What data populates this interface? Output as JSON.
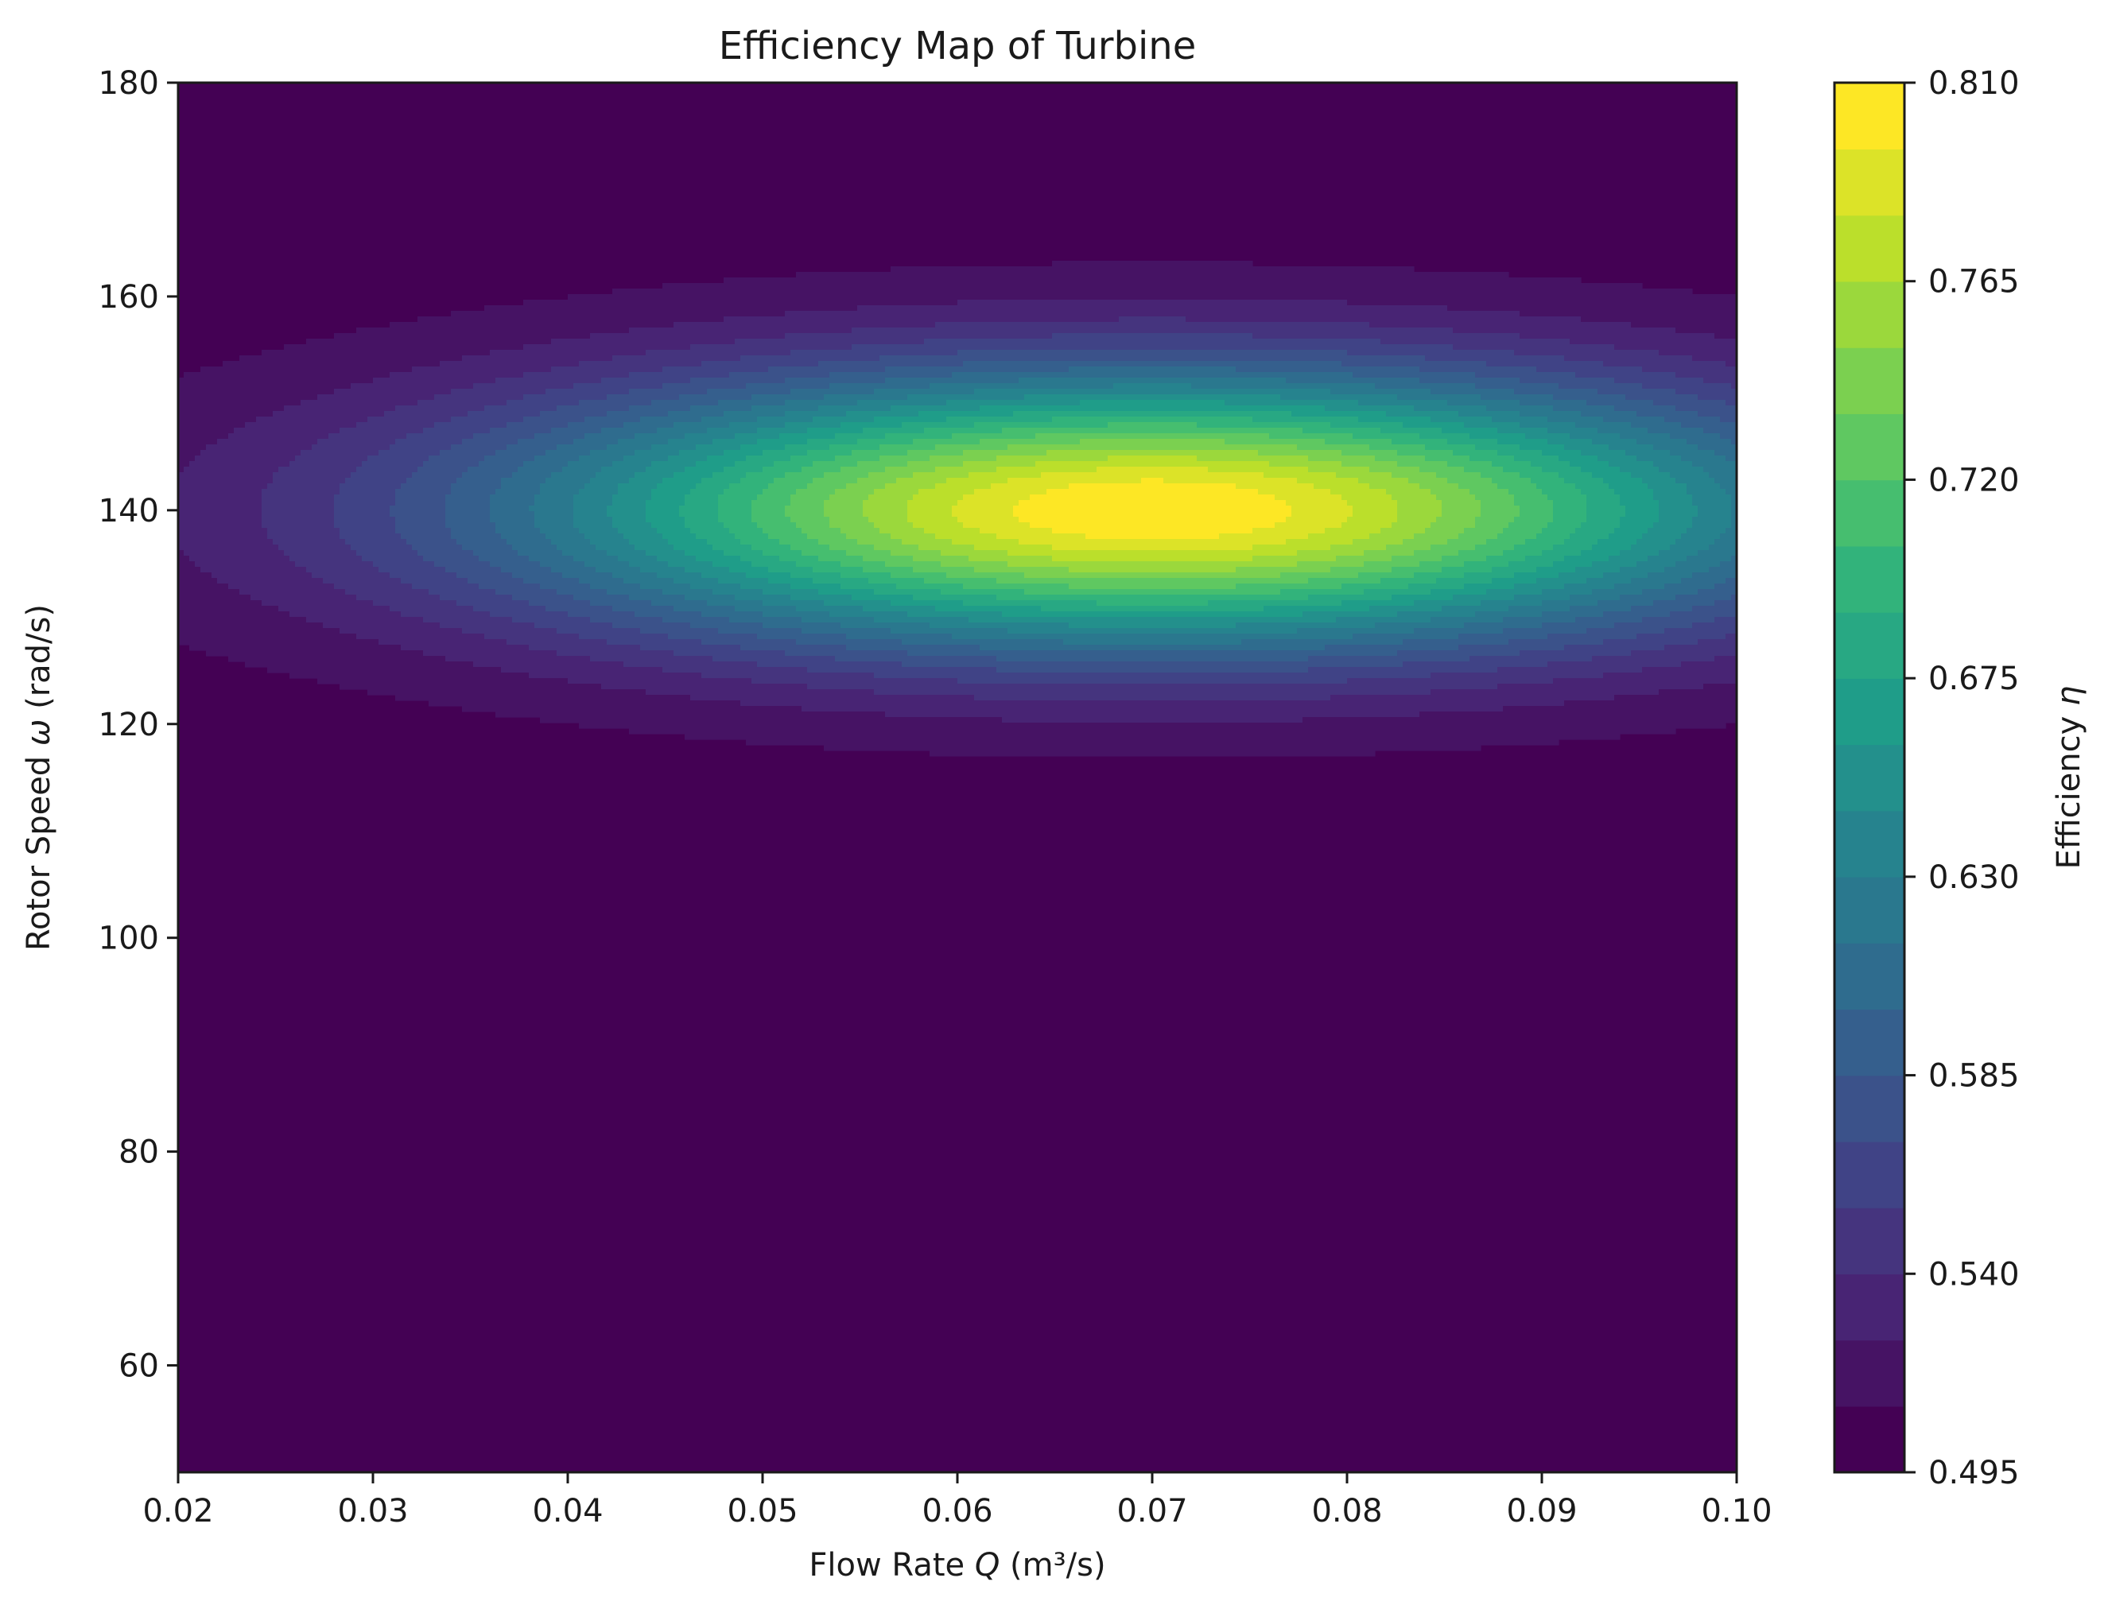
{
  "chart_data": {
    "type": "heatmap",
    "subtype": "filled-contour",
    "title": "Efficiency Map of Turbine",
    "xlabel": "Flow Rate Q (m³/s)",
    "xlabel_parts": {
      "before": "Flow Rate ",
      "symbol": "Q",
      "after": " (m³/s)"
    },
    "ylabel": "Rotor Speed ω (rad/s)",
    "ylabel_parts": {
      "before": "Rotor Speed ",
      "symbol": "ω",
      "after": " (rad/s)"
    },
    "colorbar_label": "Efficiency η",
    "colorbar_label_parts": {
      "before": "Efficiency ",
      "symbol": "η"
    },
    "xlim": [
      0.02,
      0.1
    ],
    "ylim": [
      50,
      180
    ],
    "x_ticks": [
      "0.02",
      "0.03",
      "0.04",
      "0.05",
      "0.06",
      "0.07",
      "0.08",
      "0.09",
      "0.10"
    ],
    "y_ticks": [
      "60",
      "80",
      "100",
      "120",
      "140",
      "160",
      "180"
    ],
    "colorbar_ticks": [
      "0.495",
      "0.540",
      "0.585",
      "0.630",
      "0.675",
      "0.720",
      "0.765",
      "0.810"
    ],
    "colorbar_range": [
      0.495,
      0.81
    ],
    "colormap": "viridis",
    "levels": 21,
    "model": {
      "description_of_surface": "elliptical peak",
      "peak": {
        "Q": 0.07,
        "omega": 140,
        "efficiency": 0.81
      },
      "baseline_efficiency": 0.5,
      "sigma_Q": 0.032,
      "sigma_omega": 12.5
    },
    "grid": false
  }
}
